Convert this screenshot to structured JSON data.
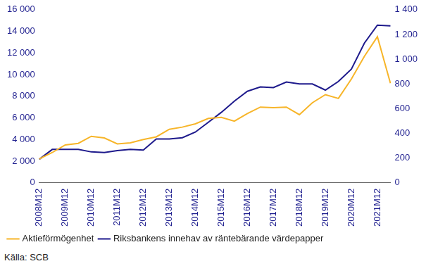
{
  "chart_data": {
    "type": "line",
    "source": "Källa: SCB",
    "categories": [
      "2008M12",
      null,
      "2009M12",
      null,
      "2010M12",
      null,
      "2011M12",
      null,
      "2012M12",
      null,
      "2013M12",
      null,
      "2014M12",
      null,
      "2015M12",
      null,
      "2016M12",
      null,
      "2017M12",
      null,
      "2018M12",
      null,
      "2019M12",
      null,
      "2020M12",
      null,
      "2021M12",
      null
    ],
    "series": [
      {
        "name": "Aktieförmögenhet",
        "color": "#f7b529",
        "axis": "y",
        "values": [
          2200,
          2800,
          3500,
          3650,
          4300,
          4150,
          3600,
          3700,
          4000,
          4250,
          4950,
          5150,
          5450,
          5950,
          6050,
          5700,
          6400,
          7000,
          6950,
          7000,
          6300,
          7400,
          8150,
          7800,
          9600,
          11700,
          13500,
          9200
        ]
      },
      {
        "name": "Riksbankens innehav av räntebärande värdepapper",
        "color": "#1e1a8c",
        "axis": "y2",
        "values": [
          190,
          270,
          270,
          270,
          250,
          245,
          260,
          270,
          265,
          355,
          355,
          365,
          410,
          490,
          570,
          660,
          740,
          775,
          770,
          815,
          800,
          800,
          750,
          820,
          920,
          1130,
          1275,
          1270
        ]
      }
    ],
    "ylim": [
      0,
      16000
    ],
    "yticks": [
      0,
      {
        "value": 2000,
        "label": "2 000"
      },
      {
        "value": 4000,
        "label": "4 000"
      },
      {
        "value": 6000,
        "label": "6 000"
      },
      {
        "value": 8000,
        "label": "8 000"
      },
      {
        "value": 10000,
        "label": "10 000"
      },
      {
        "value": 12000,
        "label": "12 000"
      },
      {
        "value": 14000,
        "label": "14 000"
      },
      {
        "value": 16000,
        "label": "16 000"
      }
    ],
    "y2lim": [
      0,
      1400
    ],
    "y2ticks": [
      0,
      200,
      400,
      600,
      800,
      1000,
      {
        "value": 1000,
        "label": "1 000"
      },
      {
        "value": 1200,
        "label": "1 200"
      },
      {
        "value": 1400,
        "label": "1 400"
      }
    ],
    "grid": false,
    "legend": "bottom"
  }
}
